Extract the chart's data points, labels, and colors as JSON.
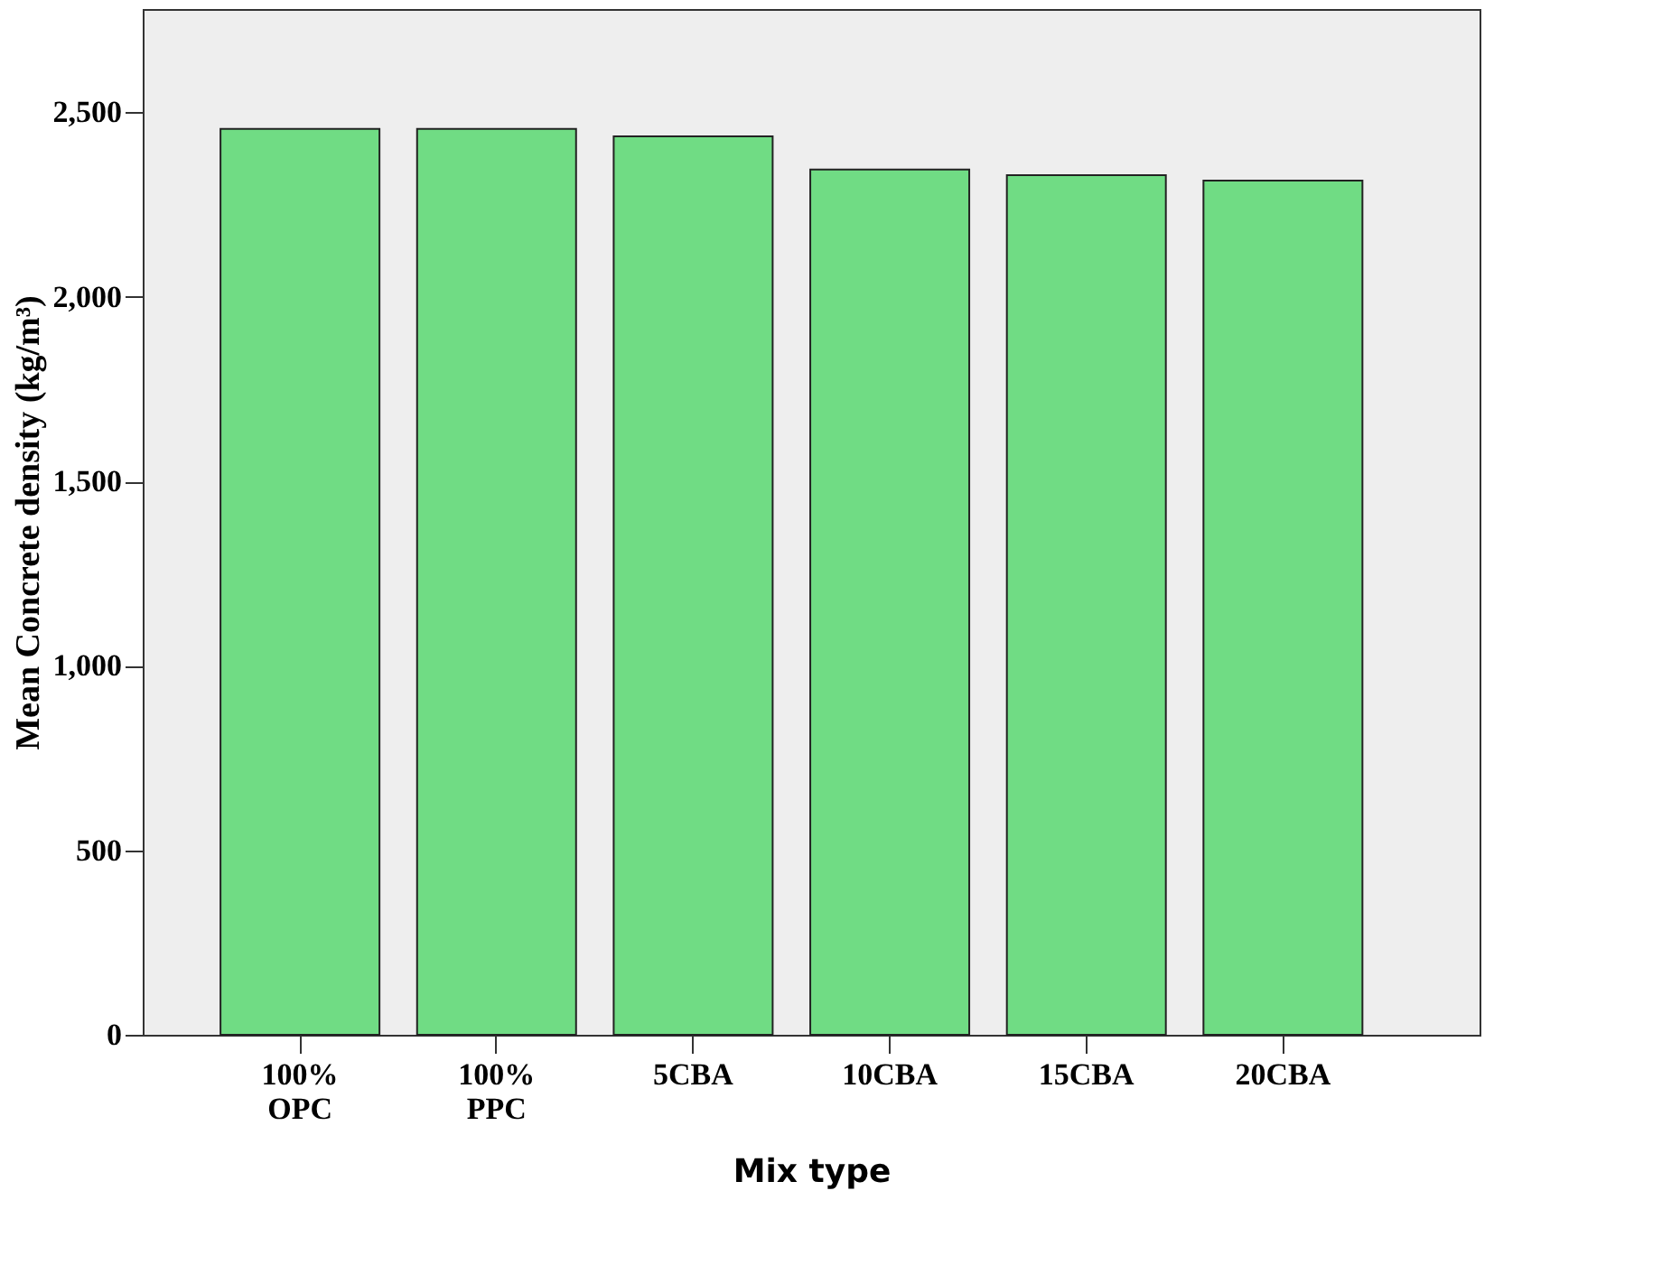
{
  "chart_data": {
    "type": "bar",
    "xlabel": "Mix type",
    "ylabel": "Mean Concrete density (kg/m³)",
    "categories": [
      "100%\nOPC",
      "100%\nPPC",
      "5CBA",
      "10CBA",
      "15CBA",
      "20CBA"
    ],
    "values": [
      2455,
      2455,
      2435,
      2345,
      2330,
      2315
    ],
    "color": "#70dc84",
    "ylim": [
      0,
      2780
    ],
    "yticks": [
      0,
      500,
      {
        "value": 1000,
        "label": "1,000"
      },
      {
        "value": 1500,
        "label": "1,500"
      },
      {
        "value": 2000,
        "label": "2,000"
      },
      {
        "value": 2500,
        "label": "2,500"
      }
    ],
    "grid": false,
    "legend": false
  }
}
